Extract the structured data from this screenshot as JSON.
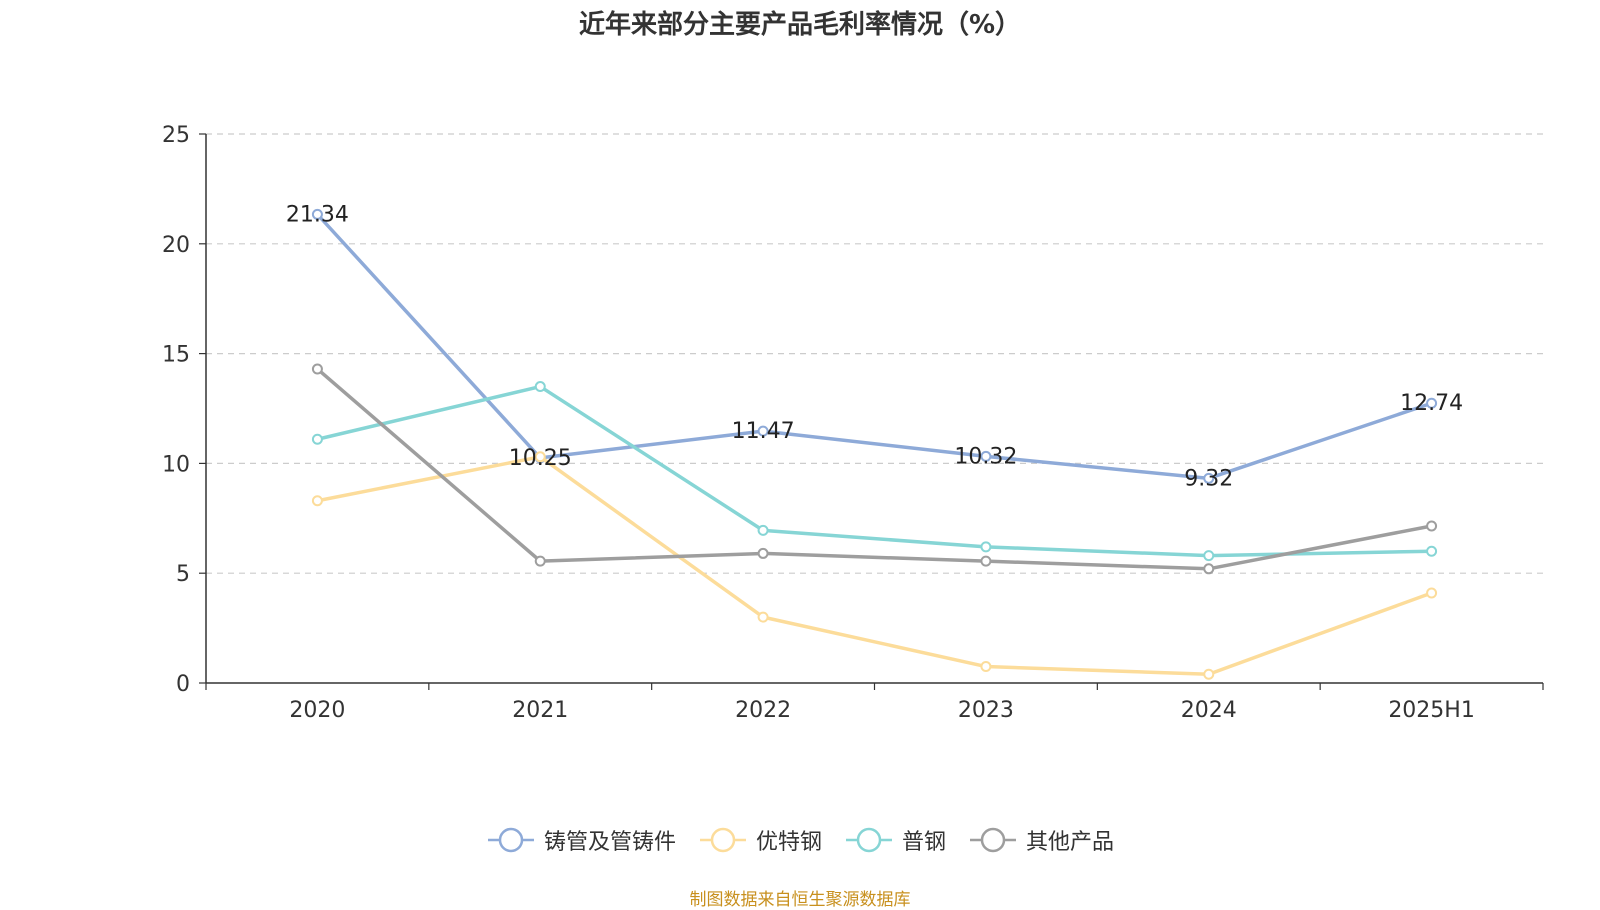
{
  "chart_data": {
    "type": "line",
    "title": "近年来部分主要产品毛利率情况（%）",
    "categories": [
      "2020",
      "2021",
      "2022",
      "2023",
      "2024",
      "2025H1"
    ],
    "ylim": [
      0,
      25
    ],
    "yticks": [
      0,
      5,
      10,
      15,
      20,
      25
    ],
    "grid": true,
    "legend_position": "bottom",
    "series": [
      {
        "name": "铸管及管铸件",
        "color": "#8eaad8",
        "values": [
          21.34,
          10.25,
          11.47,
          10.32,
          9.32,
          12.74
        ],
        "labels": [
          "21.34",
          "10.25",
          "11.47",
          "10.32",
          "9.32",
          "12.74"
        ]
      },
      {
        "name": "优特钢",
        "color": "#fcdc9a",
        "values": [
          8.3,
          10.3,
          3.0,
          0.75,
          0.4,
          4.1
        ]
      },
      {
        "name": "普钢",
        "color": "#86d5d5",
        "values": [
          11.1,
          13.5,
          6.95,
          6.2,
          5.8,
          6.0
        ]
      },
      {
        "name": "其他产品",
        "color": "#9e9e9e",
        "values": [
          14.3,
          5.55,
          5.9,
          5.55,
          5.2,
          7.15
        ]
      }
    ]
  },
  "footer": {
    "source": "制图数据来自恒生聚源数据库"
  }
}
